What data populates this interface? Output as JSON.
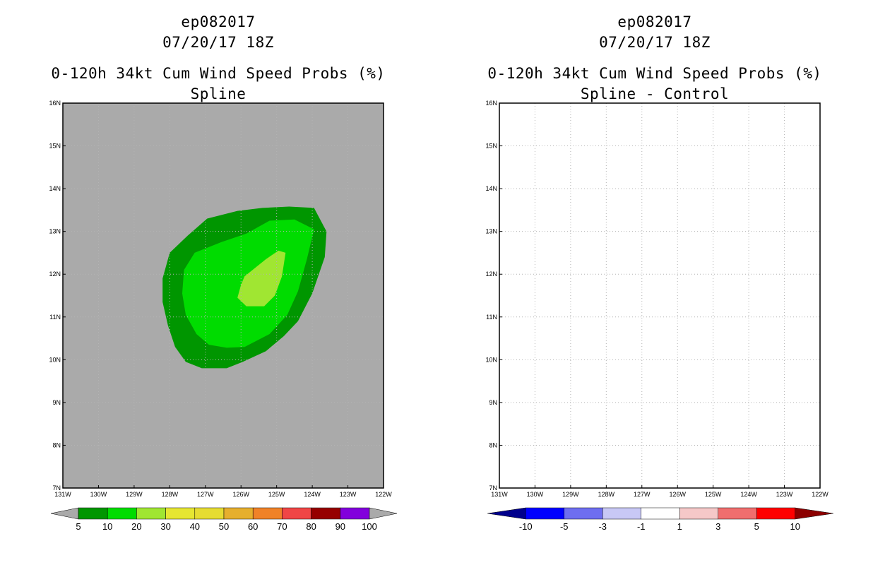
{
  "panels": [
    {
      "storm": "ep082017",
      "datetime": "07/20/17 18Z",
      "title": "0-120h 34kt Cum Wind Speed Probs (%)",
      "subtitle": "Spline",
      "background_color": "#aaaaaa"
    },
    {
      "storm": "ep082017",
      "datetime": "07/20/17 18Z",
      "title": "0-120h 34kt Cum Wind Speed Probs (%)",
      "subtitle": "Spline - Control",
      "background_color": "#ffffff"
    }
  ],
  "chart_data": [
    {
      "type": "contour",
      "title": "0-120h 34kt Cum Wind Speed Probs (%)",
      "subtitle": "Spline",
      "xlim": [
        -131,
        -122
      ],
      "ylim": [
        7,
        16
      ],
      "x_ticks": [
        -131,
        -130,
        -129,
        -128,
        -127,
        -126,
        -125,
        -124,
        -123,
        -122
      ],
      "x_tick_labels": [
        "131W",
        "130W",
        "129W",
        "128W",
        "127W",
        "126W",
        "125W",
        "124W",
        "123W",
        "122W"
      ],
      "y_ticks": [
        7,
        8,
        9,
        10,
        11,
        12,
        13,
        14,
        15,
        16
      ],
      "y_tick_labels": [
        "7N",
        "8N",
        "9N",
        "10N",
        "11N",
        "12N",
        "13N",
        "14N",
        "15N",
        "16N"
      ],
      "grid": true,
      "contours": [
        {
          "level_min": 5,
          "color": "#009600",
          "lonlat": [
            [
              -126.95,
              13.3
            ],
            [
              -126.1,
              13.48
            ],
            [
              -125.4,
              13.55
            ],
            [
              -124.65,
              13.58
            ],
            [
              -123.95,
              13.55
            ],
            [
              -123.6,
              13.0
            ],
            [
              -123.65,
              12.4
            ],
            [
              -124.0,
              11.55
            ],
            [
              -124.4,
              10.9
            ],
            [
              -124.8,
              10.55
            ],
            [
              -125.3,
              10.2
            ],
            [
              -125.95,
              9.95
            ],
            [
              -126.4,
              9.8
            ],
            [
              -127.1,
              9.8
            ],
            [
              -127.55,
              9.95
            ],
            [
              -127.85,
              10.3
            ],
            [
              -128.05,
              10.8
            ],
            [
              -128.2,
              11.35
            ],
            [
              -128.2,
              11.9
            ],
            [
              -128.0,
              12.5
            ],
            [
              -127.5,
              12.9
            ]
          ]
        },
        {
          "level_min": 10,
          "color": "#00dc00",
          "lonlat": [
            [
              -126.55,
              12.75
            ],
            [
              -125.85,
              12.95
            ],
            [
              -125.2,
              13.25
            ],
            [
              -124.5,
              13.28
            ],
            [
              -123.95,
              13.05
            ],
            [
              -124.15,
              12.35
            ],
            [
              -124.4,
              11.6
            ],
            [
              -124.7,
              11.05
            ],
            [
              -125.2,
              10.6
            ],
            [
              -125.9,
              10.3
            ],
            [
              -126.4,
              10.28
            ],
            [
              -126.9,
              10.35
            ],
            [
              -127.25,
              10.6
            ],
            [
              -127.55,
              11.05
            ],
            [
              -127.65,
              11.55
            ],
            [
              -127.6,
              12.1
            ],
            [
              -127.3,
              12.5
            ]
          ]
        },
        {
          "level_min": 20,
          "color": "#a0e632",
          "lonlat": [
            [
              -125.9,
              11.95
            ],
            [
              -125.3,
              12.35
            ],
            [
              -124.95,
              12.55
            ],
            [
              -124.75,
              12.5
            ],
            [
              -124.85,
              11.95
            ],
            [
              -125.05,
              11.5
            ],
            [
              -125.35,
              11.25
            ],
            [
              -125.85,
              11.25
            ],
            [
              -126.1,
              11.45
            ],
            [
              -126.0,
              11.75
            ]
          ]
        }
      ],
      "colorbar": {
        "levels": [
          "5",
          "10",
          "20",
          "30",
          "40",
          "50",
          "60",
          "70",
          "80",
          "90",
          "100"
        ],
        "under_color": "#aaaaaa",
        "over_color": "#aaaaaa",
        "colors": [
          "#009600",
          "#00dc00",
          "#a0e632",
          "#e6e632",
          "#e6dc32",
          "#e6af2d",
          "#f08228",
          "#f04646",
          "#960000",
          "#8200dc"
        ]
      }
    },
    {
      "type": "contour",
      "title": "0-120h 34kt Cum Wind Speed Probs (%)",
      "subtitle": "Spline - Control",
      "xlim": [
        -131,
        -122
      ],
      "ylim": [
        7,
        16
      ],
      "x_ticks": [
        -131,
        -130,
        -129,
        -128,
        -127,
        -126,
        -125,
        -124,
        -123,
        -122
      ],
      "x_tick_labels": [
        "131W",
        "130W",
        "129W",
        "128W",
        "127W",
        "126W",
        "125W",
        "124W",
        "123W",
        "122W"
      ],
      "y_ticks": [
        7,
        8,
        9,
        10,
        11,
        12,
        13,
        14,
        15,
        16
      ],
      "y_tick_labels": [
        "7N",
        "8N",
        "9N",
        "10N",
        "11N",
        "12N",
        "13N",
        "14N",
        "15N",
        "16N"
      ],
      "grid": true,
      "contours": [],
      "colorbar": {
        "levels": [
          "-10",
          "-5",
          "-3",
          "-1",
          "1",
          "3",
          "5",
          "10"
        ],
        "under_color": "#00008c",
        "over_color": "#8c0000",
        "colors": [
          "#0000ff",
          "#6e6ef0",
          "#c8c8f5",
          "#ffffff",
          "#f5c8c8",
          "#f06e6e",
          "#ff0000"
        ]
      }
    }
  ]
}
